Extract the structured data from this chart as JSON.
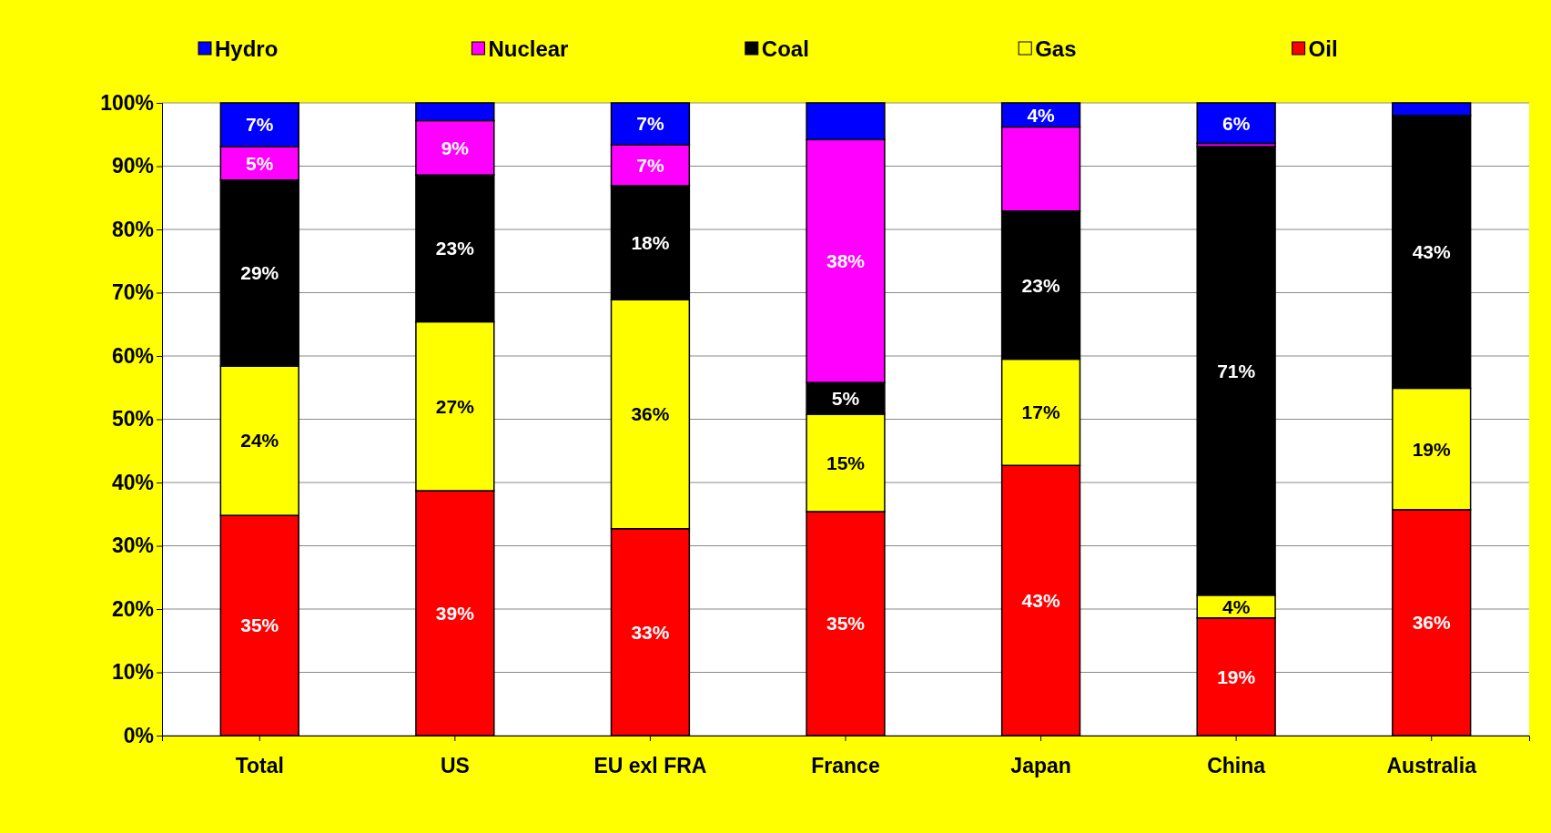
{
  "chart_data": {
    "type": "bar",
    "stacked": true,
    "categories": [
      "Total",
      "US",
      "EU exl FRA",
      "France",
      "Japan",
      "China",
      "Australia"
    ],
    "series": [
      {
        "name": "Oil",
        "color": "#ff0000",
        "values": [
          34.8,
          38.7,
          32.7,
          35.4,
          42.7,
          18.6,
          35.7
        ],
        "value_labels": [
          "35%",
          "39%",
          "33%",
          "35%",
          "43%",
          "19%",
          "36%"
        ]
      },
      {
        "name": "Gas",
        "color": "#ffff00",
        "values": [
          23.6,
          26.7,
          36.2,
          15.4,
          16.8,
          3.6,
          19.2
        ],
        "value_labels": [
          "24%",
          "27%",
          "36%",
          "15%",
          "17%",
          "4%",
          "19%"
        ]
      },
      {
        "name": "Coal",
        "color": "#000000",
        "values": [
          29.4,
          23.2,
          18.0,
          5.0,
          23.4,
          70.9,
          43.1
        ],
        "value_labels": [
          "29%",
          "23%",
          "18%",
          "5%",
          "23%",
          "71%",
          "43%"
        ]
      },
      {
        "name": "Nuclear",
        "color": "#ff00ff",
        "values": [
          5.3,
          8.6,
          6.5,
          38.4,
          13.3,
          0.5,
          0
        ],
        "value_labels": [
          "5%",
          "9%",
          "7%",
          "38%",
          null,
          null,
          null
        ]
      },
      {
        "name": "Hydro",
        "color": "#0000ff",
        "values": [
          6.9,
          2.8,
          6.6,
          5.8,
          3.8,
          6.4,
          2.0
        ],
        "value_labels": [
          "7%",
          null,
          "7%",
          null,
          "4%",
          "6%",
          null
        ]
      }
    ],
    "ylim": [
      0,
      100
    ],
    "yticks": [
      {
        "value": 0,
        "label": "0%"
      },
      {
        "value": 10,
        "label": "10%"
      },
      {
        "value": 20,
        "label": "20%"
      },
      {
        "value": 30,
        "label": "30%"
      },
      {
        "value": 40,
        "label": "40%"
      },
      {
        "value": 50,
        "label": "50%"
      },
      {
        "value": 60,
        "label": "60%"
      },
      {
        "value": 70,
        "label": "70%"
      },
      {
        "value": 80,
        "label": "80%"
      },
      {
        "value": 90,
        "label": "90%"
      },
      {
        "value": 100,
        "label": "100%"
      }
    ],
    "grid": "y",
    "legend": "top"
  }
}
